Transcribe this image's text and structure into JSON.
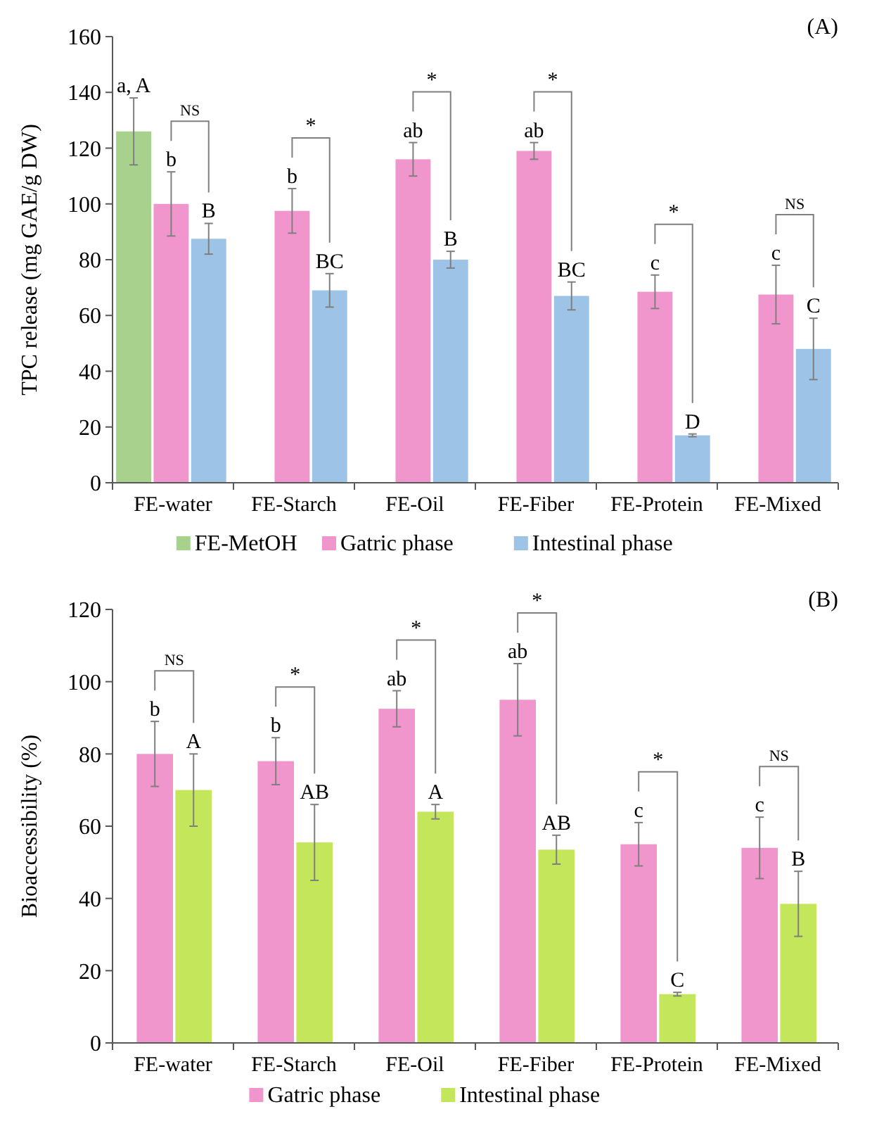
{
  "chart_data": [
    {
      "type": "bar",
      "ylabel": "TPC release (mg GAE/g DW)",
      "categories": [
        "FE-water",
        "FE-Starch",
        "FE-Oil",
        "FE-Fiber",
        "FE-Protein",
        "FE-Mixed"
      ],
      "ylim": [
        0,
        160
      ],
      "yticks": [
        0,
        20,
        40,
        60,
        80,
        100,
        120,
        140,
        160
      ],
      "grid": false,
      "legend": "bottom",
      "series": [
        {
          "name": "FE-MetOH",
          "color": "#a9d18e",
          "values": [
            126,
            null,
            null,
            null,
            null,
            null
          ],
          "errors": [
            12,
            null,
            null,
            null,
            null,
            null
          ],
          "value_labels": [
            "a, A",
            null,
            null,
            null,
            null,
            null
          ]
        },
        {
          "name": "Gatric phase",
          "color": "#f195cd",
          "values": [
            100,
            97.5,
            116,
            119,
            68.5,
            67.5
          ],
          "errors": [
            11.5,
            8,
            6,
            3,
            6,
            10.5
          ],
          "value_labels": [
            "b",
            "b",
            "ab",
            "ab",
            "c",
            "c"
          ]
        },
        {
          "name": "Intestinal phase",
          "color": "#9dc3e6",
          "values": [
            87.5,
            69,
            80,
            67,
            17,
            48
          ],
          "errors": [
            5.5,
            6,
            3,
            5,
            0.5,
            11
          ],
          "value_labels": [
            "B",
            "BC",
            "B",
            "BC",
            "D",
            "C"
          ]
        }
      ],
      "annotations": [
        "(A)",
        "NS",
        "*",
        "*",
        "*",
        "*",
        "NS"
      ]
    },
    {
      "type": "bar",
      "ylabel": "Bioaccessibility (%)",
      "categories": [
        "FE-water",
        "FE-Starch",
        "FE-Oil",
        "FE-Fiber",
        "FE-Protein",
        "FE-Mixed"
      ],
      "ylim": [
        0,
        120
      ],
      "yticks": [
        0,
        20,
        40,
        60,
        80,
        100,
        120
      ],
      "grid": false,
      "legend": "bottom",
      "series": [
        {
          "name": "Gatric phase",
          "color": "#f195cd",
          "values": [
            80,
            78,
            92.5,
            95,
            55,
            54
          ],
          "errors": [
            9,
            6.5,
            5,
            10,
            6,
            8.5
          ],
          "value_labels": [
            "b",
            "b",
            "ab",
            "ab",
            "c",
            "c"
          ]
        },
        {
          "name": "Intestinal phase",
          "color": "#c4e65a",
          "values": [
            70,
            55.5,
            64,
            53.5,
            13.5,
            38.5
          ],
          "errors": [
            10,
            10.5,
            2,
            4,
            0.5,
            9
          ],
          "value_labels": [
            "A",
            "AB",
            "A",
            "AB",
            "C",
            "B"
          ]
        }
      ],
      "annotations": [
        "(B)",
        "NS",
        "*",
        "*",
        "*",
        "*",
        "NS"
      ]
    }
  ]
}
